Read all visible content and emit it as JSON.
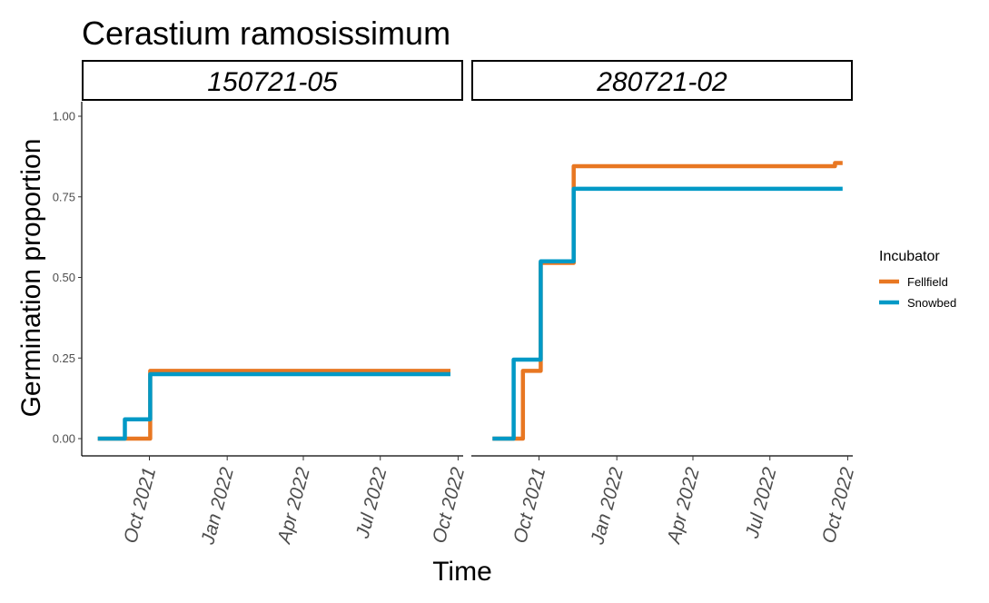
{
  "chart_data": {
    "type": "line",
    "step": true,
    "title": "Cerastium ramosissimum",
    "xlabel": "Time",
    "ylabel": "Germination proportion",
    "ylim": [
      0,
      1
    ],
    "yticks": [
      "0.00",
      "0.25",
      "0.50",
      "0.75",
      "1.00"
    ],
    "xlim": [
      "2021-07-13",
      "2022-10-07"
    ],
    "xticks": [
      {
        "date": "2021-10-01",
        "label": "Oct 2021"
      },
      {
        "date": "2022-01-01",
        "label": "Jan 2022"
      },
      {
        "date": "2022-04-01",
        "label": "Apr 2022"
      },
      {
        "date": "2022-07-01",
        "label": "Jul 2022"
      },
      {
        "date": "2022-10-01",
        "label": "Oct 2022"
      }
    ],
    "legend": {
      "title": "Incubator",
      "position": "right",
      "items": [
        {
          "name": "Fellfield",
          "color": "#E87722"
        },
        {
          "name": "Snowbed",
          "color": "#0099C6"
        }
      ]
    },
    "grid": false,
    "panels": [
      {
        "label": "150721-05",
        "series": [
          {
            "name": "Fellfield",
            "color": "#E87722",
            "points": [
              {
                "x": "2021-08-01",
                "y": 0.0
              },
              {
                "x": "2021-10-02",
                "y": 0.21
              },
              {
                "x": "2022-09-22",
                "y": 0.21
              }
            ]
          },
          {
            "name": "Snowbed",
            "color": "#0099C6",
            "points": [
              {
                "x": "2021-08-01",
                "y": 0.0
              },
              {
                "x": "2021-09-02",
                "y": 0.06
              },
              {
                "x": "2021-10-02",
                "y": 0.2
              },
              {
                "x": "2022-09-22",
                "y": 0.2
              }
            ]
          }
        ]
      },
      {
        "label": "280721-02",
        "series": [
          {
            "name": "Fellfield",
            "color": "#E87722",
            "points": [
              {
                "x": "2021-08-07",
                "y": 0.0
              },
              {
                "x": "2021-09-12",
                "y": 0.21
              },
              {
                "x": "2021-10-03",
                "y": 0.545
              },
              {
                "x": "2021-11-11",
                "y": 0.845
              },
              {
                "x": "2022-09-13",
                "y": 0.845
              },
              {
                "x": "2022-09-16",
                "y": 0.855
              },
              {
                "x": "2022-09-25",
                "y": 0.855
              }
            ]
          },
          {
            "name": "Snowbed",
            "color": "#0099C6",
            "points": [
              {
                "x": "2021-08-07",
                "y": 0.0
              },
              {
                "x": "2021-09-01",
                "y": 0.245
              },
              {
                "x": "2021-10-03",
                "y": 0.55
              },
              {
                "x": "2021-11-11",
                "y": 0.775
              },
              {
                "x": "2022-09-25",
                "y": 0.775
              }
            ]
          }
        ]
      }
    ]
  }
}
